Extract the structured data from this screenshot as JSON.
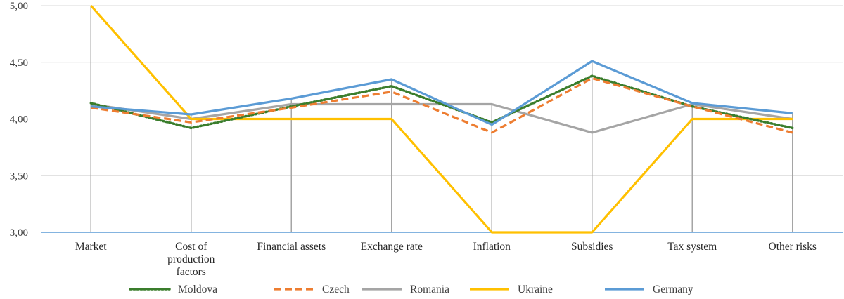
{
  "chart_data": {
    "type": "line",
    "title": "",
    "xlabel": "",
    "ylabel": "",
    "ylim": [
      3.0,
      5.0
    ],
    "yticks": [
      "3,00",
      "3,50",
      "4,00",
      "4,50",
      "5,00"
    ],
    "grid": "horizontal",
    "legend_position": "bottom",
    "categories": [
      [
        "Market"
      ],
      [
        "Cost of",
        "production",
        "factors"
      ],
      [
        "Financial assets"
      ],
      [
        "Exchange rate"
      ],
      [
        "Inflation"
      ],
      [
        "Subsidies"
      ],
      [
        "Tax system"
      ],
      [
        "Other risks"
      ]
    ],
    "series": [
      {
        "name": "Moldova",
        "color": "#3a7d2c",
        "style": "dotted",
        "values": [
          4.14,
          3.92,
          4.11,
          4.29,
          3.97,
          4.38,
          4.11,
          3.92
        ]
      },
      {
        "name": "Czech",
        "color": "#ed7d31",
        "style": "dashed",
        "values": [
          4.1,
          3.97,
          4.1,
          4.24,
          3.88,
          4.36,
          4.11,
          3.88
        ]
      },
      {
        "name": "Romania",
        "color": "#a5a5a5",
        "style": "solid",
        "values": [
          4.13,
          4.0,
          4.13,
          4.13,
          4.13,
          3.88,
          4.13,
          4.0
        ]
      },
      {
        "name": "Ukraine",
        "color": "#ffc000",
        "style": "solid",
        "values": [
          5.0,
          4.0,
          4.0,
          4.0,
          3.0,
          3.0,
          4.0,
          4.0
        ]
      },
      {
        "name": "Germany",
        "color": "#5b9bd5",
        "style": "solid",
        "values": [
          4.11,
          4.04,
          4.18,
          4.35,
          3.95,
          4.51,
          4.14,
          4.05
        ]
      }
    ]
  }
}
